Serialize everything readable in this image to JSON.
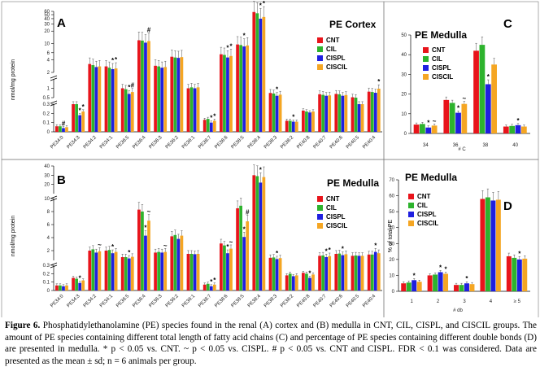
{
  "colors": {
    "CNT": "#e8141b",
    "CIL": "#2db32d",
    "CISPL": "#1f1fe0",
    "CISCIL": "#f5a623",
    "frame": "#777777"
  },
  "caption": {
    "label": "Figure 6.",
    "text": "Phosphatidylethanolamine (PE) species found in the renal (A) cortex and (B) medulla in CNT, CIL, CISPL, and CISCIL groups. The amount of PE species containing different total length of fatty acid chains (C) and percentage of PE species containing different double bonds (D) are presented in medulla. * p < 0.05 vs. CNT. ~ p < 0.05 vs. CISPL. # p < 0.05 vs. CNT and CISPL. FDR < 0.1 was considered. Data are presented as the mean ± sd; n = 6 animals per group."
  },
  "chart_data": [
    {
      "id": "A",
      "type": "bar",
      "panel_label": "A",
      "title": "PE Cortex",
      "ylabel": "nmol/mg protein",
      "legend": [
        "CNT",
        "CIL",
        "CISPL",
        "CISCIL"
      ],
      "y_segments": [
        {
          "lo": 0,
          "hi": 0.3,
          "ticks": [
            "0",
            "0.1",
            "0.2",
            "0.3"
          ]
        },
        {
          "lo": 0.5,
          "hi": 1.5,
          "ticks": [
            "0.5",
            "1"
          ]
        },
        {
          "lo": 2,
          "hi": 60,
          "ticks": [
            "2",
            "4",
            "6",
            "10",
            "20",
            "30",
            "40",
            "50",
            "60"
          ]
        }
      ],
      "categories": [
        "PE34:0",
        "PE34:3",
        "PE34:2",
        "PE34:1",
        "PE36:5",
        "PE36:4",
        "PE36:3",
        "PE36:2",
        "PE36:1",
        "PE38:7",
        "PE38:6",
        "PE38:5",
        "PE38:4",
        "PE38:3",
        "PE38:2",
        "PE40:8",
        "PE40:7",
        "PE40:6",
        "PE40:5",
        "PE40:4"
      ],
      "series": [
        {
          "name": "CNT",
          "values": [
            0.06,
            0.3,
            3.2,
            2.8,
            1.0,
            12.0,
            2.9,
            4.8,
            1.0,
            0.13,
            5.5,
            9.5,
            58.0,
            0.75,
            0.12,
            0.23,
            0.68,
            0.7,
            0.52,
            0.82
          ]
        },
        {
          "name": "CIL",
          "values": [
            0.06,
            0.32,
            3.0,
            2.6,
            0.95,
            11.8,
            2.8,
            4.6,
            1.05,
            0.14,
            5.3,
            9.2,
            54.0,
            0.72,
            0.12,
            0.22,
            0.65,
            0.68,
            0.5,
            0.8
          ]
        },
        {
          "name": "CISPL",
          "values": [
            0.04,
            0.18,
            2.7,
            2.4,
            0.7,
            10.5,
            2.6,
            4.5,
            1.0,
            0.1,
            4.6,
            8.5,
            40.0,
            0.6,
            0.11,
            0.21,
            0.6,
            0.6,
            0.47,
            0.76
          ]
        },
        {
          "name": "CISCIL",
          "values": [
            0.05,
            0.22,
            2.8,
            2.5,
            0.8,
            11.5,
            2.7,
            4.7,
            1.05,
            0.12,
            5.0,
            9.0,
            44.0,
            0.66,
            0.11,
            0.22,
            0.62,
            0.64,
            0.48,
            0.98
          ]
        }
      ],
      "annotations": [
        {
          "category": "PE34:0",
          "series": "CISPL",
          "mark": "#"
        },
        {
          "category": "PE34:3",
          "series": "CISPL",
          "mark": "*"
        },
        {
          "category": "PE34:3",
          "series": "CISCIL",
          "mark": "*"
        },
        {
          "category": "PE34:1",
          "series": "CISPL",
          "mark": "*"
        },
        {
          "category": "PE34:1",
          "series": "CISCIL",
          "mark": "*"
        },
        {
          "category": "PE36:5",
          "series": "CISPL",
          "mark": "*"
        },
        {
          "category": "PE36:5",
          "series": "CISCIL",
          "mark": "#"
        },
        {
          "category": "PE36:4",
          "series": "CISCIL",
          "mark": "#"
        },
        {
          "category": "PE38:7",
          "series": "CISPL",
          "mark": "*"
        },
        {
          "category": "PE38:7",
          "series": "CISCIL",
          "mark": "*"
        },
        {
          "category": "PE38:6",
          "series": "CISPL",
          "mark": "*"
        },
        {
          "category": "PE38:6",
          "series": "CISCIL",
          "mark": "*"
        },
        {
          "category": "PE38:5",
          "series": "CISPL",
          "mark": "*"
        },
        {
          "category": "PE38:4",
          "series": "CISPL",
          "mark": "*"
        },
        {
          "category": "PE38:4",
          "series": "CISCIL",
          "mark": "*"
        },
        {
          "category": "PE38:3",
          "series": "CISPL",
          "mark": "*"
        },
        {
          "category": "PE38:2",
          "series": "CISPL",
          "mark": "*"
        },
        {
          "category": "PE40:4",
          "series": "CISCIL",
          "mark": "*"
        }
      ]
    },
    {
      "id": "B",
      "type": "bar",
      "panel_label": "B",
      "title": "PE Medulla",
      "ylabel": "nmol/mg protein",
      "legend": [
        "CNT",
        "CIL",
        "CISPL",
        "CISCIL"
      ],
      "y_segments": [
        {
          "lo": 0,
          "hi": 0.3,
          "ticks": [
            "0",
            "0.1",
            "0.2",
            "0.3"
          ]
        },
        {
          "lo": 0.5,
          "hi": 10,
          "ticks": [
            "2",
            "4",
            "6",
            "8",
            "10"
          ]
        },
        {
          "lo": 10,
          "hi": 40,
          "ticks": [
            "20",
            "30",
            "40"
          ]
        }
      ],
      "categories": [
        "PE34:0",
        "PE34:3",
        "PE34:2",
        "PE34:1",
        "PE36:5",
        "PE36:4",
        "PE36:3",
        "PE36:2",
        "PE36:1",
        "PE38:7",
        "PE38:6",
        "PE38:5",
        "PE38:4",
        "PE38:3",
        "PE38:2",
        "PE40:8",
        "PE40:7",
        "PE40:6",
        "PE40:5",
        "PE40:4"
      ],
      "series": [
        {
          "name": "CNT",
          "values": [
            0.06,
            0.15,
            2.0,
            2.0,
            1.0,
            8.3,
            1.7,
            4.2,
            1.5,
            0.07,
            3.1,
            8.5,
            30.0,
            0.9,
            0.18,
            0.21,
            1.2,
            1.5,
            1.2,
            1.4
          ]
        },
        {
          "name": "CIL",
          "values": [
            0.06,
            0.14,
            2.2,
            2.1,
            1.0,
            8.0,
            1.8,
            4.4,
            1.5,
            0.08,
            2.8,
            8.9,
            29.0,
            0.95,
            0.2,
            0.2,
            1.25,
            1.55,
            1.25,
            1.4
          ]
        },
        {
          "name": "CISPL",
          "values": [
            0.05,
            0.09,
            1.7,
            1.6,
            0.8,
            4.3,
            1.7,
            3.8,
            1.45,
            0.05,
            1.6,
            4.1,
            22.0,
            0.7,
            0.17,
            0.15,
            1.0,
            1.3,
            1.2,
            1.8
          ]
        },
        {
          "name": "CISCIL",
          "values": [
            0.06,
            0.12,
            1.9,
            1.8,
            1.05,
            6.6,
            1.8,
            4.3,
            1.5,
            0.07,
            2.3,
            6.5,
            28.0,
            0.85,
            0.18,
            0.19,
            1.15,
            1.45,
            1.2,
            1.6
          ]
        }
      ],
      "annotations": [
        {
          "category": "PE34:3",
          "series": "CISPL",
          "mark": "*"
        },
        {
          "category": "PE34:2",
          "series": "CISCIL",
          "mark": "~"
        },
        {
          "category": "PE34:1",
          "series": "CISPL",
          "mark": "*"
        },
        {
          "category": "PE36:5",
          "series": "CISPL",
          "mark": "*"
        },
        {
          "category": "PE36:4",
          "series": "CISPL",
          "mark": "*"
        },
        {
          "category": "PE36:4",
          "series": "CISCIL",
          "mark": "~"
        },
        {
          "category": "PE36:3",
          "series": "CISCIL",
          "mark": "~"
        },
        {
          "category": "PE38:7",
          "series": "CISPL",
          "mark": "*"
        },
        {
          "category": "PE38:7",
          "series": "CISCIL",
          "mark": "*"
        },
        {
          "category": "PE38:6",
          "series": "CISPL",
          "mark": "*"
        },
        {
          "category": "PE38:6",
          "series": "CISCIL",
          "mark": "~"
        },
        {
          "category": "PE38:5",
          "series": "CISPL",
          "mark": "*"
        },
        {
          "category": "PE38:5",
          "series": "CISCIL",
          "mark": "#"
        },
        {
          "category": "PE38:4",
          "series": "CISPL",
          "mark": "*"
        },
        {
          "category": "PE38:3",
          "series": "CISPL",
          "mark": "*"
        },
        {
          "category": "PE40:8",
          "series": "CISPL",
          "mark": "*"
        },
        {
          "category": "PE40:7",
          "series": "CISPL",
          "mark": "*"
        },
        {
          "category": "PE40:7",
          "series": "CISCIL",
          "mark": "*"
        },
        {
          "category": "PE40:6",
          "series": "CISPL",
          "mark": "*"
        },
        {
          "category": "PE40:4",
          "series": "CISPL",
          "mark": "*"
        }
      ]
    },
    {
      "id": "C",
      "type": "bar",
      "panel_label": "C",
      "title": "PE Medulla",
      "xlabel": "# C",
      "ylabel": "",
      "ylim": [
        0,
        50
      ],
      "yticks": [
        "0",
        "10",
        "20",
        "30",
        "40",
        "50"
      ],
      "legend": [
        "CNT",
        "CIL",
        "CISPL",
        "CISCIL"
      ],
      "categories": [
        "34",
        "36",
        "38",
        "40"
      ],
      "series": [
        {
          "name": "CNT",
          "values": [
            4.5,
            17.0,
            42.0,
            3.5
          ]
        },
        {
          "name": "CIL",
          "values": [
            4.8,
            15.5,
            45.0,
            3.8
          ]
        },
        {
          "name": "CISPL",
          "values": [
            3.0,
            10.5,
            25.0,
            4.2
          ]
        },
        {
          "name": "CISCIL",
          "values": [
            4.0,
            15.0,
            35.0,
            3.5
          ]
        }
      ],
      "annotations": [
        {
          "category": "34",
          "series": "CISPL",
          "mark": "*"
        },
        {
          "category": "34",
          "series": "CISCIL",
          "mark": "~"
        },
        {
          "category": "36",
          "series": "CISPL",
          "mark": "*"
        },
        {
          "category": "36",
          "series": "CISCIL",
          "mark": "~"
        },
        {
          "category": "38",
          "series": "CISPL",
          "mark": "*"
        },
        {
          "category": "40",
          "series": "CISPL",
          "mark": "*"
        }
      ]
    },
    {
      "id": "D",
      "type": "bar",
      "panel_label": "D",
      "title": "PE Medulla",
      "xlabel": "# db",
      "ylabel": "% of total PE",
      "ylim": [
        0,
        70
      ],
      "yticks": [
        "0",
        "10",
        "20",
        "30",
        "40",
        "50",
        "60",
        "70"
      ],
      "legend": [
        "CNT",
        "CIL",
        "CISPL",
        "CISCIL"
      ],
      "categories": [
        "1",
        "2",
        "3",
        "4",
        "≥ 5"
      ],
      "series": [
        {
          "name": "CNT",
          "values": [
            5.0,
            10.0,
            4.0,
            58.0,
            22.0
          ]
        },
        {
          "name": "CIL",
          "values": [
            5.5,
            10.5,
            4.0,
            59.0,
            21.0
          ]
        },
        {
          "name": "CISPL",
          "values": [
            7.0,
            12.0,
            5.0,
            57.0,
            20.0
          ]
        },
        {
          "name": "CISCIL",
          "values": [
            6.0,
            11.0,
            4.5,
            57.5,
            20.5
          ]
        }
      ],
      "annotations": [
        {
          "category": "1",
          "series": "CISPL",
          "mark": "*"
        },
        {
          "category": "2",
          "series": "CISPL",
          "mark": "*"
        },
        {
          "category": "2",
          "series": "CISCIL",
          "mark": "*"
        },
        {
          "category": "3",
          "series": "CISPL",
          "mark": "*"
        },
        {
          "category": "≥ 5",
          "series": "CISPL",
          "mark": "*"
        }
      ]
    }
  ]
}
